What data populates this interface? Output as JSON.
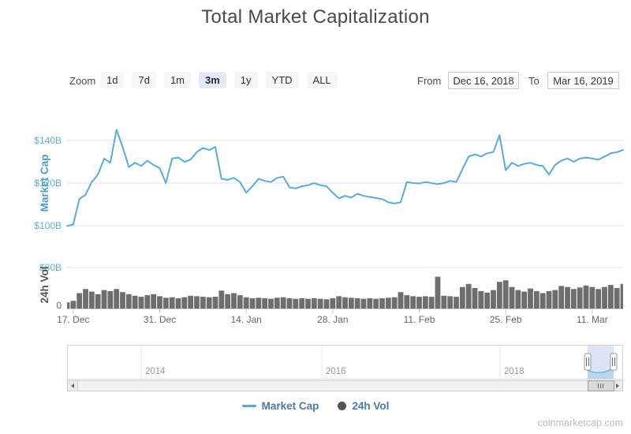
{
  "title": "Total Market Capitalization",
  "controls": {
    "zoom_label": "Zoom",
    "zoom_buttons": [
      "1d",
      "7d",
      "1m",
      "3m",
      "1y",
      "YTD",
      "ALL"
    ],
    "zoom_selected": "3m",
    "from_label": "From",
    "from_value": "Dec 16, 2018",
    "to_label": "To",
    "to_value": "Mar 16, 2019"
  },
  "legend": {
    "items": [
      {
        "label": "Market Cap",
        "marker": "line",
        "color": "#56acdb"
      },
      {
        "label": "24h Vol",
        "marker": "circle",
        "color": "#545454"
      }
    ]
  },
  "watermark": "coinmarketcap.com",
  "chart_data": {
    "type": [
      "line",
      "column"
    ],
    "title": "Total Market Capitalization",
    "x": {
      "from": "Dec 16, 2018",
      "to": "Mar 16, 2019",
      "unit": "day",
      "n_points": 91,
      "tick_labels": [
        "17. Dec",
        "31. Dec",
        "14. Jan",
        "28. Jan",
        "11. Feb",
        "25. Feb",
        "11. Mar"
      ],
      "tick_day_indices": [
        1,
        15,
        29,
        43,
        57,
        71,
        85
      ]
    },
    "series": [
      {
        "name": "Market Cap",
        "type": "line",
        "color": "#56acdb",
        "unit": "USD billions",
        "ylabel": "Market Cap",
        "ylim": [
          96,
          148
        ],
        "yticks": [
          {
            "v": 100,
            "label": "$100B"
          },
          {
            "v": 120,
            "label": "$120B"
          },
          {
            "v": 140,
            "label": "$140B"
          }
        ],
        "values": [
          99.8,
          100.6,
          112.6,
          114.5,
          120.5,
          124.0,
          131.5,
          129.5,
          145.0,
          137.0,
          127.5,
          129.5,
          128.0,
          130.5,
          128.5,
          127.0,
          120.0,
          131.5,
          132.0,
          130.0,
          131.0,
          134.5,
          136.5,
          135.5,
          137.0,
          122.0,
          121.5,
          122.5,
          120.5,
          115.5,
          118.5,
          122.0,
          121.0,
          120.5,
          122.5,
          123.0,
          118.0,
          117.5,
          118.5,
          119.0,
          120.0,
          119.0,
          118.5,
          115.5,
          112.8,
          114.0,
          113.2,
          115.0,
          114.0,
          113.5,
          113.0,
          112.5,
          111.0,
          110.4,
          111.0,
          120.5,
          120.0,
          119.8,
          120.5,
          120.0,
          119.5,
          120.0,
          121.0,
          120.5,
          126.5,
          132.5,
          133.5,
          132.5,
          134.0,
          134.5,
          142.5,
          126.0,
          129.5,
          128.0,
          129.0,
          129.5,
          128.5,
          128.0,
          124.0,
          128.5,
          130.5,
          131.5,
          130.0,
          131.5,
          132.0,
          131.5,
          131.0,
          132.5,
          134.0,
          134.5,
          135.5
        ]
      },
      {
        "name": "24h Vol",
        "type": "column",
        "color": "#6e6e6e",
        "unit": "USD billions",
        "ylabel": "24h Vol",
        "ylim": [
          0,
          83
        ],
        "yticks": [
          {
            "v": 0,
            "label": "0"
          },
          {
            "v": 80,
            "label": "$80B"
          }
        ],
        "values": [
          12,
          15,
          30,
          38,
          33,
          28,
          36,
          34,
          38,
          32,
          28,
          25,
          23,
          26,
          28,
          24,
          21,
          22,
          20,
          22,
          25,
          24,
          23,
          22,
          23,
          35,
          28,
          30,
          26,
          22,
          20,
          21,
          20,
          19,
          21,
          22,
          20,
          19,
          20,
          19,
          20,
          19,
          18,
          20,
          24,
          22,
          21,
          20,
          19,
          20,
          19,
          20,
          21,
          22,
          32,
          26,
          24,
          23,
          24,
          23,
          62,
          25,
          24,
          23,
          42,
          48,
          40,
          34,
          31,
          36,
          52,
          55,
          42,
          36,
          33,
          39,
          34,
          30,
          34,
          36,
          44,
          42,
          38,
          41,
          45,
          42,
          38,
          42,
          46,
          40,
          48
        ]
      }
    ],
    "navigator": {
      "year_labels": [
        "2014",
        "2016",
        "2018"
      ],
      "selected_range": [
        "Dec 16, 2018",
        "Mar 16, 2019"
      ]
    }
  }
}
